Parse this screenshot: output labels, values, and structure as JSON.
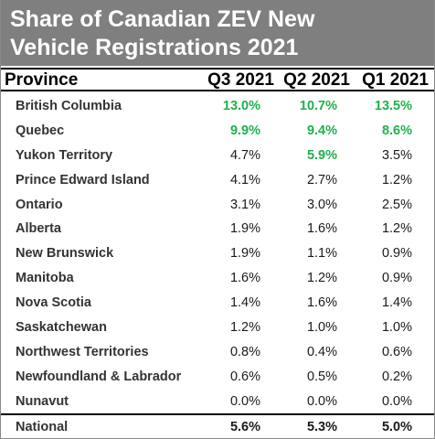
{
  "chart_data": {
    "type": "table",
    "title_lines": [
      "Share of Canadian ZEV  New",
      "Vehicle Registrations 2021"
    ],
    "columns": [
      "Province",
      "Q3 2021",
      "Q2 2021",
      "Q1 2021"
    ],
    "rows": [
      {
        "name": "British Columbia",
        "values": [
          "13.0%",
          "10.7%",
          "13.5%"
        ],
        "highlight": [
          true,
          true,
          true
        ]
      },
      {
        "name": "Quebec",
        "values": [
          "9.9%",
          "9.4%",
          "8.6%"
        ],
        "highlight": [
          true,
          true,
          true
        ]
      },
      {
        "name": "Yukon Territory",
        "values": [
          "4.7%",
          "5.9%",
          "3.5%"
        ],
        "highlight": [
          false,
          true,
          false
        ]
      },
      {
        "name": "Prince Edward Island",
        "values": [
          "4.1%",
          "2.7%",
          "1.2%"
        ],
        "highlight": [
          false,
          false,
          false
        ]
      },
      {
        "name": "Ontario",
        "values": [
          "3.1%",
          "3.0%",
          "2.5%"
        ],
        "highlight": [
          false,
          false,
          false
        ]
      },
      {
        "name": "Alberta",
        "values": [
          "1.9%",
          "1.6%",
          "1.2%"
        ],
        "highlight": [
          false,
          false,
          false
        ]
      },
      {
        "name": "New Brunswick",
        "values": [
          "1.9%",
          "1.1%",
          "0.9%"
        ],
        "highlight": [
          false,
          false,
          false
        ]
      },
      {
        "name": "Manitoba",
        "values": [
          "1.6%",
          "1.2%",
          "0.9%"
        ],
        "highlight": [
          false,
          false,
          false
        ]
      },
      {
        "name": "Nova Scotia",
        "values": [
          "1.4%",
          "1.6%",
          "1.4%"
        ],
        "highlight": [
          false,
          false,
          false
        ]
      },
      {
        "name": "Saskatchewan",
        "values": [
          "1.2%",
          "1.0%",
          "1.0%"
        ],
        "highlight": [
          false,
          false,
          false
        ]
      },
      {
        "name": "Northwest Territories",
        "values": [
          "0.8%",
          "0.4%",
          "0.6%"
        ],
        "highlight": [
          false,
          false,
          false
        ]
      },
      {
        "name": "Newfoundland & Labrador",
        "values": [
          "0.6%",
          "0.5%",
          "0.2%"
        ],
        "highlight": [
          false,
          false,
          false
        ]
      },
      {
        "name": "Nunavut",
        "values": [
          "0.0%",
          "0.0%",
          "0.0%"
        ],
        "highlight": [
          false,
          false,
          false
        ]
      }
    ],
    "total": {
      "name": "National",
      "values": [
        "5.6%",
        "5.3%",
        "5.0%"
      ]
    }
  },
  "colors": {
    "title_background": "#7f7f7f",
    "title_text": "#ffffff",
    "highlight": "#1fb14a"
  }
}
